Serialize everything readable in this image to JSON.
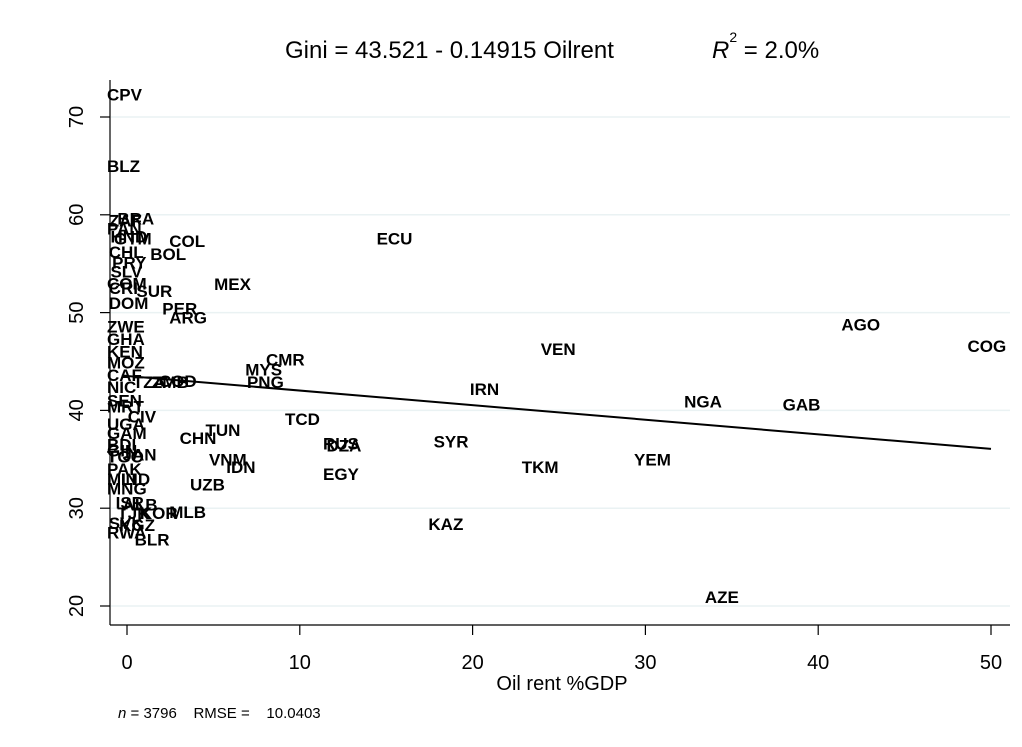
{
  "chart_data": {
    "type": "scatter",
    "title": "Gini = 43.521 - 0.14915 Oilrent",
    "r2_prefix": "R",
    "r2_sup": "2",
    "r2_suffix": " = 2.0%",
    "xlabel": "Oil rent %GDP",
    "ylabel": "",
    "xlim": [
      -1,
      51
    ],
    "ylim": [
      18.5,
      74
    ],
    "xticks": [
      0,
      10,
      20,
      30,
      40,
      50
    ],
    "yticks": [
      20,
      30,
      40,
      50,
      60,
      70
    ],
    "grid": true,
    "fit_line": {
      "intercept": 43.521,
      "slope": -0.14915,
      "x_range": [
        -0.3,
        50
      ]
    },
    "points": [
      {
        "label": "CPV",
        "x": 0.0,
        "y": 72.3
      },
      {
        "label": "BLZ",
        "x": 0.0,
        "y": 65.0
      },
      {
        "label": "BRA",
        "x": 0.6,
        "y": 59.6
      },
      {
        "label": "ZAF",
        "x": 0.1,
        "y": 59.4
      },
      {
        "label": "PAN",
        "x": 0.0,
        "y": 58.6
      },
      {
        "label": "HND",
        "x": 0.2,
        "y": 57.8
      },
      {
        "label": "GTM",
        "x": 0.4,
        "y": 57.6
      },
      {
        "label": "COL",
        "x": 3.6,
        "y": 57.3
      },
      {
        "label": "ECU",
        "x": 15.6,
        "y": 57.6
      },
      {
        "label": "BOL",
        "x": 2.5,
        "y": 56.0
      },
      {
        "label": "CHL",
        "x": 0.1,
        "y": 56.2
      },
      {
        "label": "PRY",
        "x": 0.3,
        "y": 55.1
      },
      {
        "label": "SLV",
        "x": 0.2,
        "y": 54.2
      },
      {
        "label": "COM",
        "x": 0.0,
        "y": 53.0
      },
      {
        "label": "MEX",
        "x": 6.2,
        "y": 52.9
      },
      {
        "label": "CRI",
        "x": 0.1,
        "y": 52.5
      },
      {
        "label": "SUR",
        "x": 1.7,
        "y": 52.2
      },
      {
        "label": "DOM",
        "x": 0.1,
        "y": 51.0
      },
      {
        "label": "PER",
        "x": 3.2,
        "y": 50.4
      },
      {
        "label": "ARG",
        "x": 3.6,
        "y": 49.5
      },
      {
        "label": "ZWE",
        "x": 0.0,
        "y": 48.6
      },
      {
        "label": "AGO",
        "x": 42.5,
        "y": 48.8
      },
      {
        "label": "COG",
        "x": 49.8,
        "y": 46.6
      },
      {
        "label": "VEN",
        "x": 25.1,
        "y": 46.3
      },
      {
        "label": "GHA",
        "x": 0.0,
        "y": 47.3
      },
      {
        "label": "KEN",
        "x": 0.0,
        "y": 46.0
      },
      {
        "label": "MOZ",
        "x": 0.0,
        "y": 44.9
      },
      {
        "label": "CMR",
        "x": 9.2,
        "y": 45.2
      },
      {
        "label": "MYS",
        "x": 8.0,
        "y": 44.2
      },
      {
        "label": "PNG",
        "x": 8.1,
        "y": 42.9
      },
      {
        "label": "CAF",
        "x": 0.0,
        "y": 43.6
      },
      {
        "label": "NIC",
        "x": 0.0,
        "y": 42.4
      },
      {
        "label": "SEN",
        "x": 0.0,
        "y": 41.0
      },
      {
        "label": "TZA",
        "x": 1.5,
        "y": 42.9
      },
      {
        "label": "ZMB",
        "x": 2.6,
        "y": 42.9
      },
      {
        "label": "COD",
        "x": 3.0,
        "y": 43.0
      },
      {
        "label": "IRN",
        "x": 21.0,
        "y": 42.2
      },
      {
        "label": "NGA",
        "x": 33.4,
        "y": 40.9
      },
      {
        "label": "GAB",
        "x": 39.1,
        "y": 40.6
      },
      {
        "label": "MRT",
        "x": 0.0,
        "y": 40.4
      },
      {
        "label": "CIV",
        "x": 1.2,
        "y": 39.4
      },
      {
        "label": "TCD",
        "x": 10.3,
        "y": 39.1
      },
      {
        "label": "UGA",
        "x": 0.0,
        "y": 38.6
      },
      {
        "label": "GAM",
        "x": 0.0,
        "y": 37.7
      },
      {
        "label": "TUN",
        "x": 5.7,
        "y": 38.0
      },
      {
        "label": "CHN",
        "x": 4.2,
        "y": 37.2
      },
      {
        "label": "BDI",
        "x": 0.0,
        "y": 36.5
      },
      {
        "label": "TGO",
        "x": 0.0,
        "y": 35.3
      },
      {
        "label": "SYR",
        "x": 18.9,
        "y": 36.8
      },
      {
        "label": "RUS",
        "x": 12.5,
        "y": 36.6
      },
      {
        "label": "DZA",
        "x": 12.7,
        "y": 36.4
      },
      {
        "label": "GIN",
        "x": 0.0,
        "y": 35.9
      },
      {
        "label": "JAN",
        "x": 0.9,
        "y": 35.5
      },
      {
        "label": "VNM",
        "x": 5.9,
        "y": 35.0
      },
      {
        "label": "YEM",
        "x": 30.5,
        "y": 35.0
      },
      {
        "label": "IDN",
        "x": 6.9,
        "y": 34.2
      },
      {
        "label": "TKM",
        "x": 24.0,
        "y": 34.2
      },
      {
        "label": "PAK",
        "x": 0.0,
        "y": 34.0
      },
      {
        "label": "EGY",
        "x": 12.5,
        "y": 33.5
      },
      {
        "label": "MLI",
        "x": 0.0,
        "y": 33.0
      },
      {
        "label": "IND",
        "x": 0.8,
        "y": 33.0
      },
      {
        "label": "UZB",
        "x": 4.8,
        "y": 32.4
      },
      {
        "label": "MNG",
        "x": 0.0,
        "y": 32.0
      },
      {
        "label": "ISR",
        "x": 0.5,
        "y": 30.6
      },
      {
        "label": "ALB",
        "x": 0.9,
        "y": 30.4
      },
      {
        "label": "TJK",
        "x": 0.6,
        "y": 29.5
      },
      {
        "label": "KOR",
        "x": 1.9,
        "y": 29.5
      },
      {
        "label": "MLB",
        "x": 3.6,
        "y": 29.6
      },
      {
        "label": "KAZ",
        "x": 18.6,
        "y": 28.4
      },
      {
        "label": "SVK",
        "x": 0.1,
        "y": 28.5
      },
      {
        "label": "KGZ",
        "x": 0.7,
        "y": 28.3
      },
      {
        "label": "RWA",
        "x": 0.0,
        "y": 27.5
      },
      {
        "label": "BLR",
        "x": 1.6,
        "y": 26.8
      },
      {
        "label": "AZE",
        "x": 34.6,
        "y": 20.9
      }
    ]
  },
  "footer": {
    "n_label": "n",
    "n_rest": " = 3796    RMSE =    10.0403"
  }
}
